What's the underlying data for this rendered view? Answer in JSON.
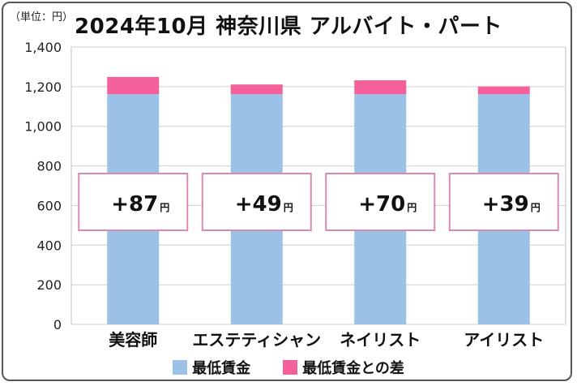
{
  "chart_data": {
    "type": "bar",
    "stacked": true,
    "title": "2024年10月 神奈川県 アルバイト・パート",
    "unit_label": "（単位：円）",
    "categories": [
      "美容師",
      "エステティシャン",
      "ネイリスト",
      "アイリスト"
    ],
    "series": [
      {
        "name": "最低賃金",
        "color": "#9bc2e6",
        "values": [
          1162,
          1162,
          1162,
          1162
        ]
      },
      {
        "name": "最低賃金との差",
        "color": "#f4609a",
        "values": [
          87,
          49,
          70,
          39
        ]
      }
    ],
    "diff_labels": [
      "+87",
      "+49",
      "+70",
      "+39"
    ],
    "diff_unit": "円",
    "y_ticks": [
      "0",
      "200",
      "400",
      "600",
      "800",
      "1,000",
      "1,200",
      "1,400"
    ],
    "ylim": [
      0,
      1400
    ],
    "grid": true,
    "legend_position": "bottom"
  }
}
